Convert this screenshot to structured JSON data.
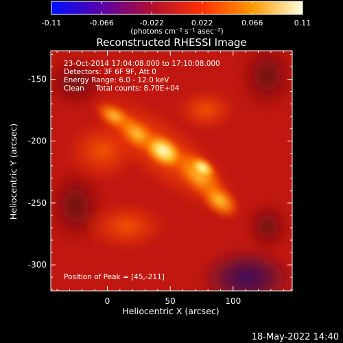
{
  "chart_data": {
    "type": "heatmap",
    "title": "Reconstructed RHESSI Image",
    "xlabel": "Heliocentric X (arcsec)",
    "ylabel": "Heliocentric Y (arcsec)",
    "x_ticks": [
      "0",
      "50",
      "100"
    ],
    "y_ticks": [
      "-150",
      "-200",
      "-250",
      "-300"
    ],
    "x_tick_values": [
      0,
      50,
      100
    ],
    "y_tick_values": [
      -150,
      -200,
      -250,
      -300
    ],
    "xlim": [
      -45,
      147
    ],
    "ylim": [
      -321,
      -127
    ],
    "colorbar": {
      "ticks": [
        "-0.11",
        "-0.066",
        "-0.022",
        "0.022",
        "0.066",
        "0.11"
      ],
      "tick_values": [
        -0.11,
        -0.066,
        -0.022,
        0.022,
        0.066,
        0.11
      ],
      "range": [
        -0.11,
        0.11
      ],
      "unit": "(photons cm⁻² s⁻¹ asec⁻²)",
      "colors": [
        "#0010ff",
        "#5a00a8",
        "#b01030",
        "#ff3000",
        "#ff9900",
        "#ffffe0"
      ]
    },
    "annotations": [
      "23-Oct-2014 17:04:08.000 to 17:10:08.000",
      "Detectors: 3F 6F 9F, Att 0",
      "Energy Range: 6.0 - 12.0 keV",
      "Clean     Total counts: 8.70E+04"
    ],
    "peak_label": "Position of Peak = [45,-211]",
    "peak": [
      45,
      -211
    ],
    "emission_ridge": [
      {
        "x": 0,
        "y": -175,
        "value": 0.065
      },
      {
        "x": 20,
        "y": -192,
        "value": 0.075
      },
      {
        "x": 45,
        "y": -211,
        "value": 0.11
      },
      {
        "x": 70,
        "y": -228,
        "value": 0.09
      },
      {
        "x": 90,
        "y": -252,
        "value": 0.085
      }
    ]
  },
  "footer_date": "18-May-2022 14:40"
}
